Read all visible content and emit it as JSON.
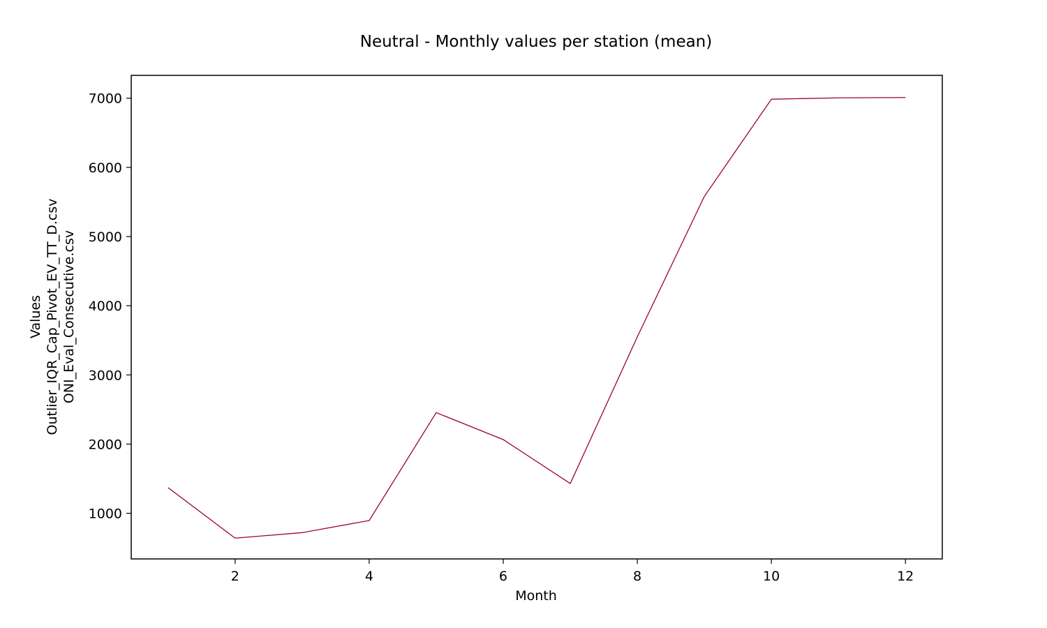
{
  "chart_data": {
    "type": "line",
    "title": "Neutral - Monthly values per station (mean)",
    "xlabel": "Month",
    "ylabel_lines": [
      "Values",
      "Outlier_IQR_Cap_Pivot_EV_TT_D.csv",
      "ONI_Eval_Consecutive.csv"
    ],
    "xlim": [
      0.45,
      12.55
    ],
    "ylim": [
      340,
      7330
    ],
    "xticks": [
      2,
      4,
      6,
      8,
      10,
      12
    ],
    "yticks": [
      1000,
      2000,
      3000,
      4000,
      5000,
      6000,
      7000
    ],
    "grid": false,
    "series": [
      {
        "color": "#99003d",
        "x": [
          1,
          2,
          3,
          4,
          5,
          6,
          7,
          8,
          9,
          10,
          11,
          12
        ],
        "y": [
          1370,
          640,
          720,
          895,
          2455,
          2065,
          1430,
          3550,
          5580,
          6985,
          7005,
          7010
        ]
      }
    ]
  }
}
